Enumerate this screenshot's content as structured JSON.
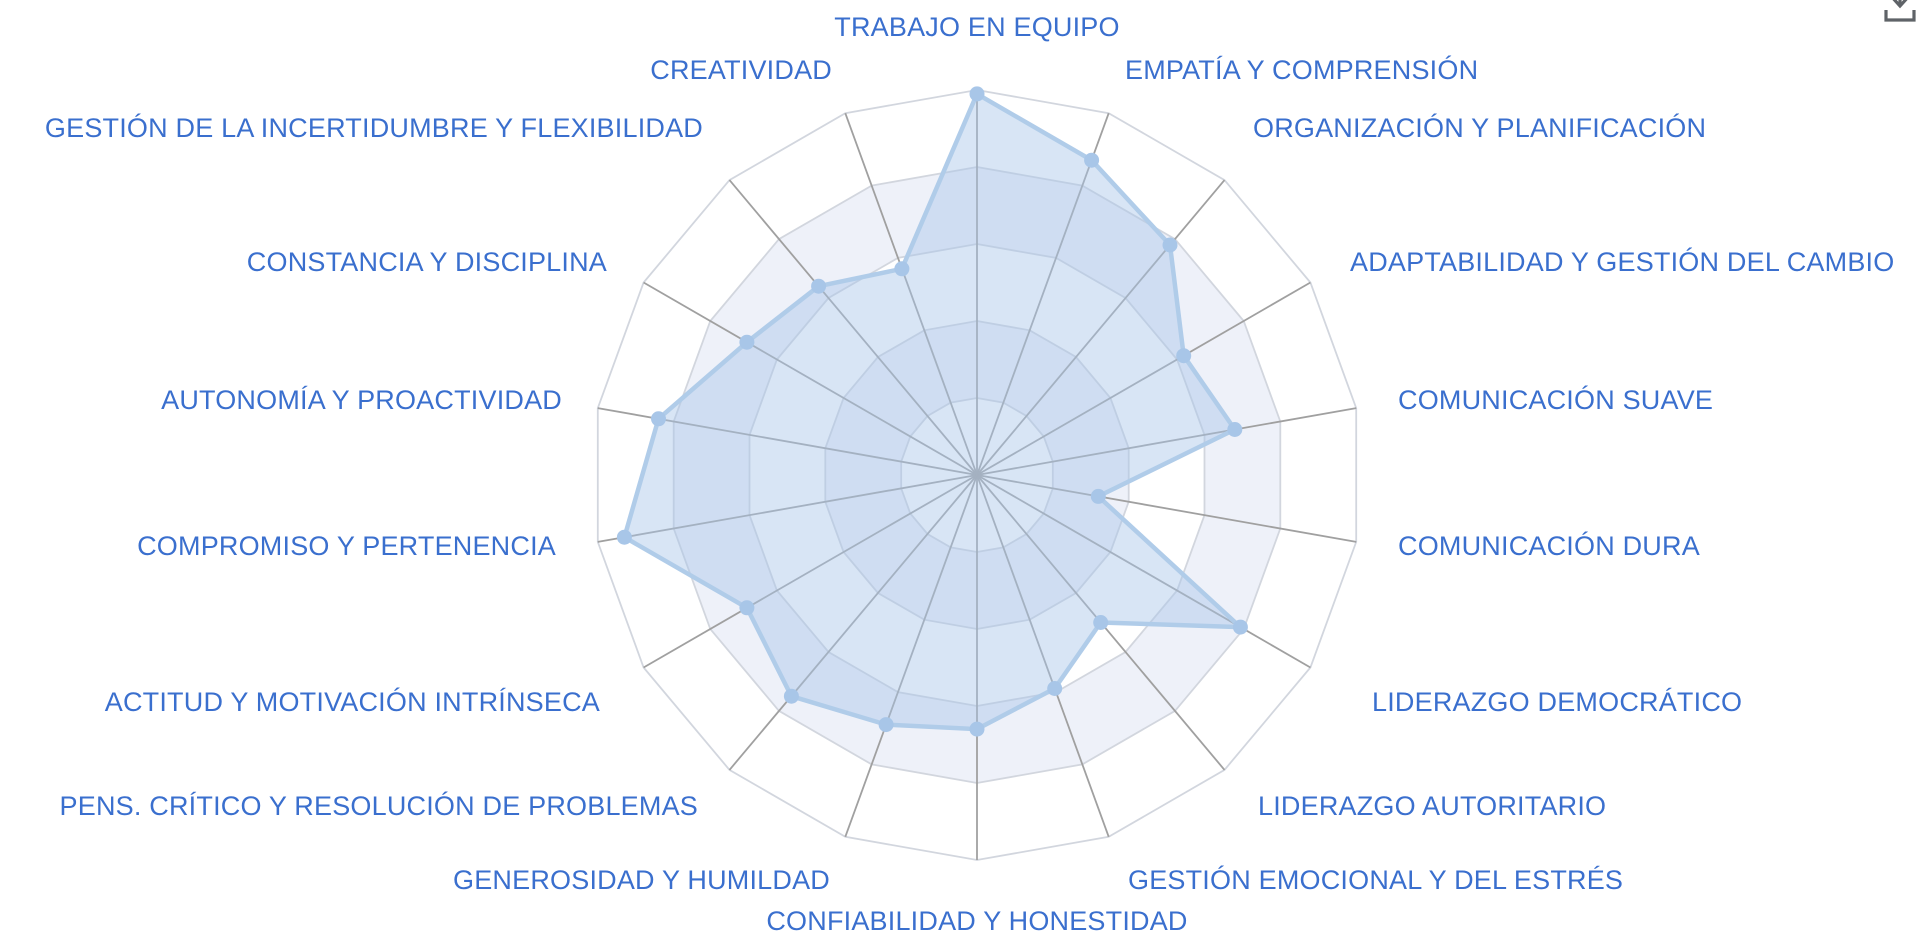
{
  "page": {
    "background": "#ffffff"
  },
  "toolbar": {
    "download_icon": "download"
  },
  "chart_data": {
    "type": "radar",
    "title": "",
    "categories": [
      "TRABAJO EN EQUIPO",
      "EMPATÍA Y COMPRENSIÓN",
      "ORGANIZACIÓN Y PLANIFICACIÓN",
      "ADAPTABILIDAD Y GESTIÓN DEL CAMBIO",
      "COMUNICACIÓN SUAVE",
      "COMUNICACIÓN DURA",
      "LIDERAZGO DEMOCRÁTICO",
      "LIDERAZGO AUTORITARIO",
      "GESTIÓN EMOCIONAL Y DEL ESTRÉS",
      "CONFIABILIDAD Y HONESTIDAD",
      "GENEROSIDAD Y HUMILDAD",
      "PENS. CRÍTICO Y RESOLUCIÓN DE PROBLEMAS",
      "ACTITUD Y MOTIVACIÓN INTRÍNSECA",
      "COMPROMISO Y PERTENENCIA",
      "AUTONOMÍA Y PROACTIVIDAD",
      "CONSTANCIA Y DISCIPLINA",
      "GESTIÓN DE LA INCERTIDUMBRE Y FLEXIBILIDAD",
      "CREATIVIDAD"
    ],
    "series": [
      {
        "values": [
          99,
          87,
          78,
          62,
          68,
          32,
          79,
          50,
          59,
          66,
          69,
          75,
          69,
          93,
          84,
          69,
          64,
          57
        ]
      }
    ],
    "max": 100,
    "levels": 5,
    "start_angle_deg": 90,
    "direction": "clockwise",
    "grid_shape": "polygon",
    "legend": "none",
    "colors": {
      "label": "#3a6fce",
      "spoke": "#a0a0a0",
      "ring_line": "#d2d6de",
      "band_odd": "#ffffff",
      "band_even": "#eef1f9",
      "series_fill": "#a8c6e8",
      "series_fill_opacity": 0.45,
      "series_line": "#b0cce9",
      "series_point": "#a8c6e8",
      "download_icon": "#5f6368"
    }
  }
}
